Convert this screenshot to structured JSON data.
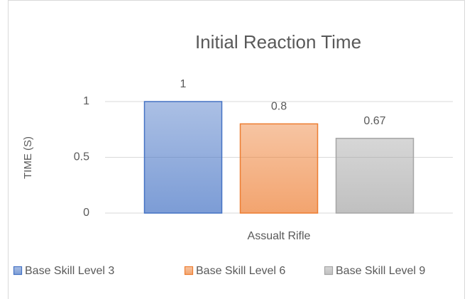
{
  "chart_data": {
    "type": "bar",
    "title": "Initial Reaction Time",
    "y_label": "TIME (S)",
    "categories": [
      "Assualt Rifle"
    ],
    "series": [
      {
        "name": "Base Skill Level 3",
        "color": "#4472c4",
        "values": [
          1
        ]
      },
      {
        "name": "Base Skill Level 6",
        "color": "#ed7d31",
        "values": [
          0.8
        ]
      },
      {
        "name": "Base Skill Level 9",
        "color": "#a5a5a5",
        "values": [
          0.67
        ]
      }
    ],
    "ylim": [
      0,
      1.2
    ],
    "yticks": [
      0,
      0.5,
      1
    ],
    "grid": true,
    "legend": "bottom"
  }
}
